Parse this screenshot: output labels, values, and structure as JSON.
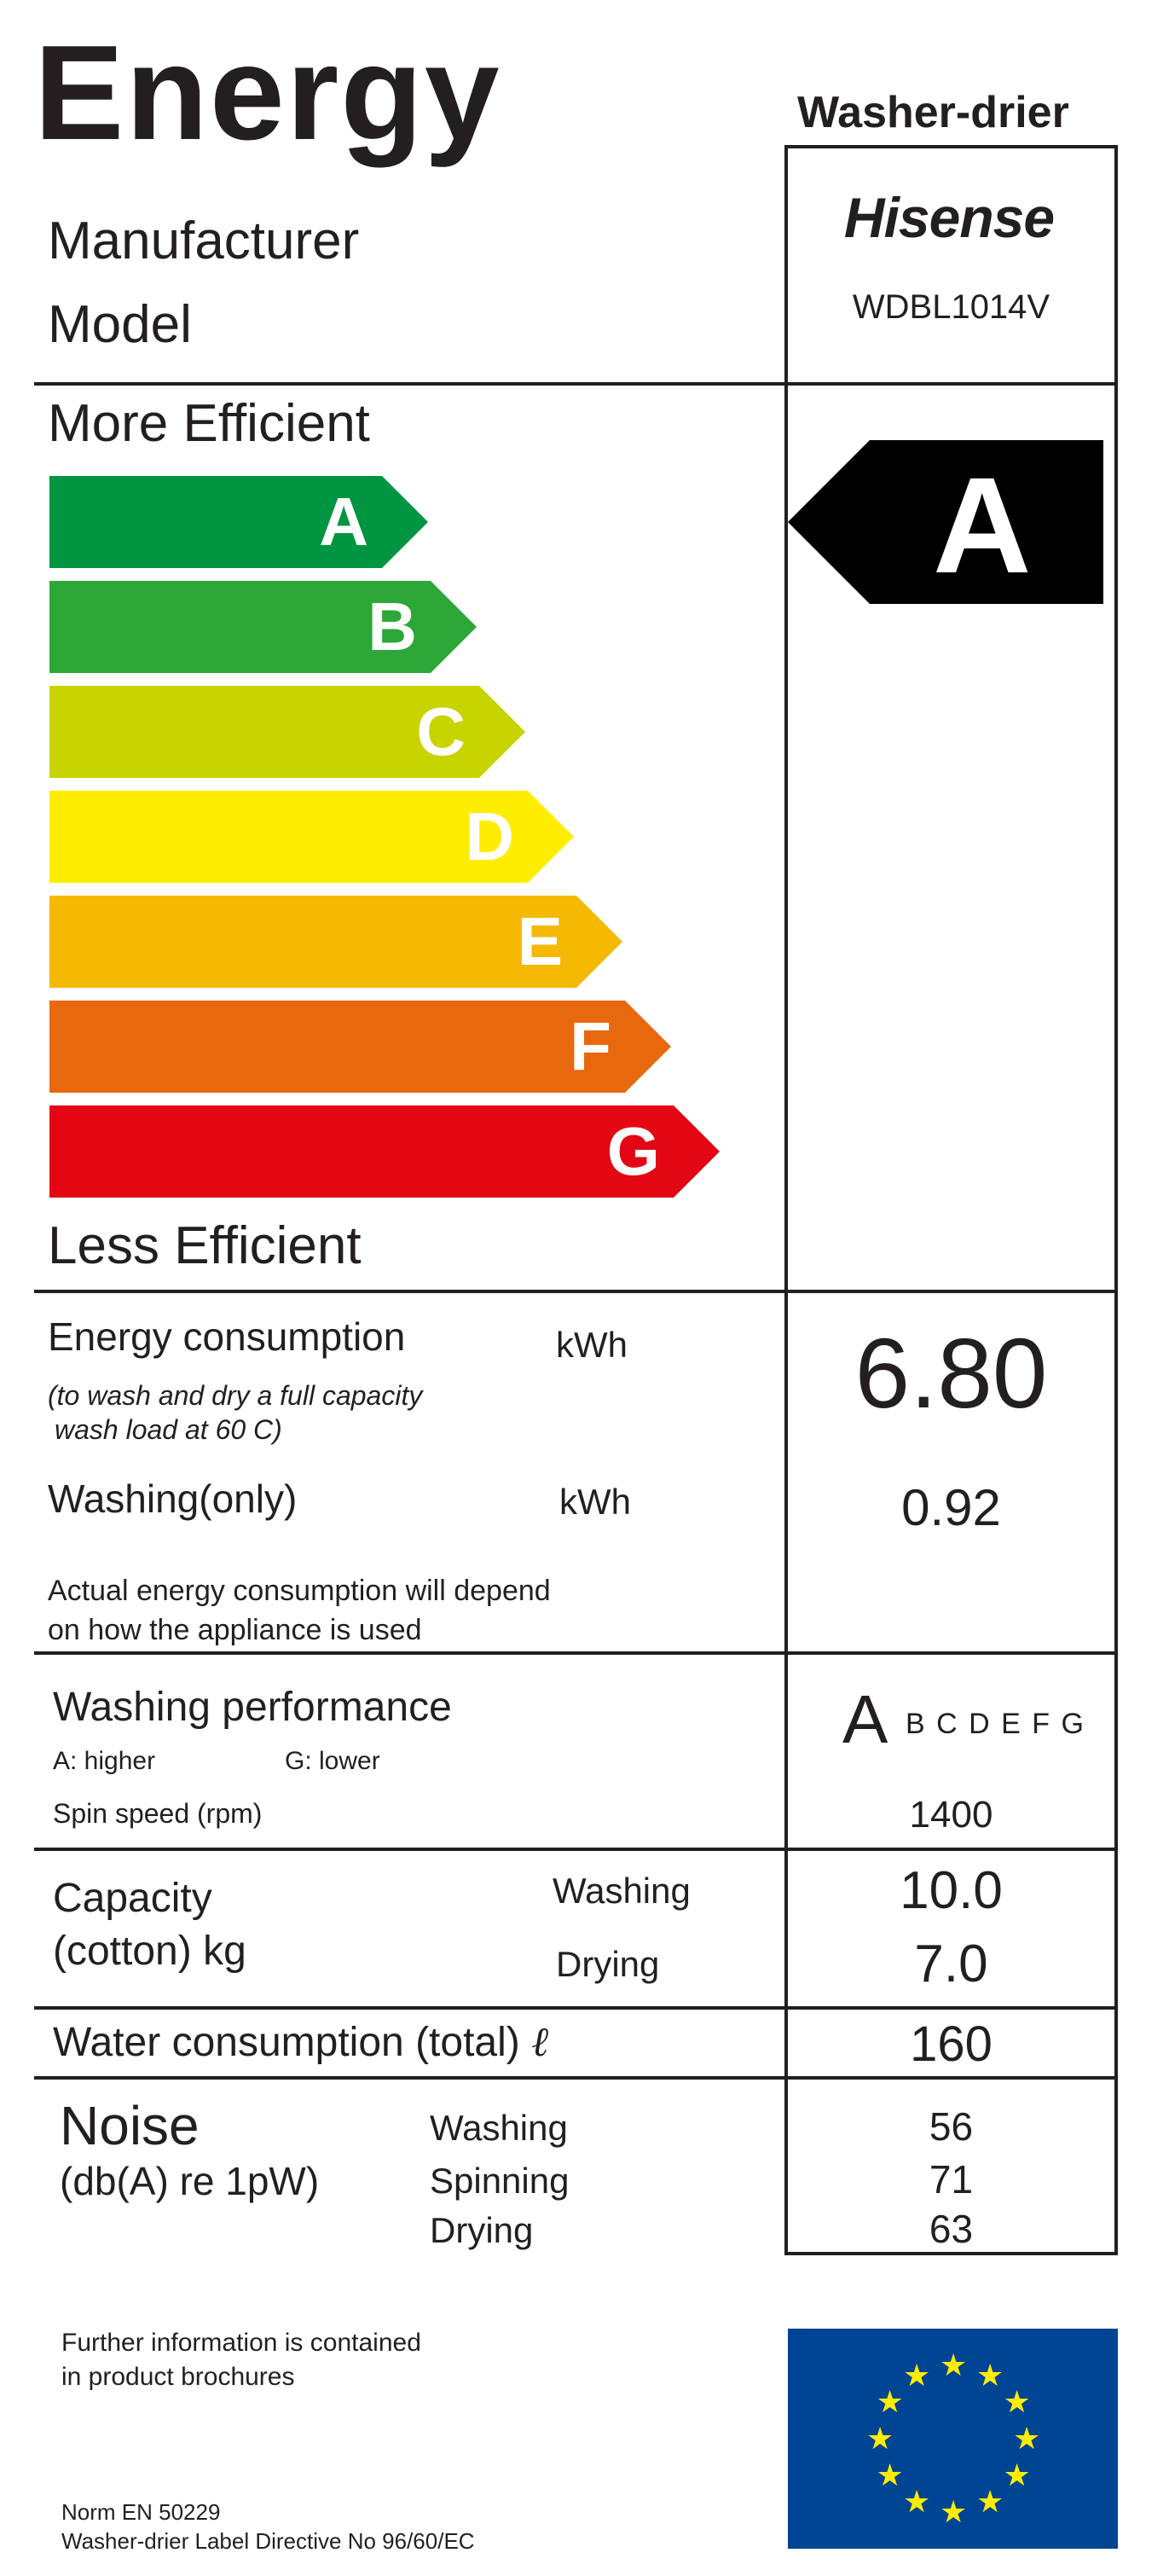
{
  "header": {
    "title": "Energy",
    "appliance_type": "Washer-drier",
    "manufacturer_label": "Manufacturer",
    "model_label": "Model",
    "brand": "Hisense",
    "model": "WDBL1014V"
  },
  "scale": {
    "top_label": "More Efficient",
    "bottom_label": "Less Efficient",
    "classes": [
      {
        "letter": "A",
        "color": "#009540"
      },
      {
        "letter": "B",
        "color": "#2da737"
      },
      {
        "letter": "C",
        "color": "#c8d400"
      },
      {
        "letter": "D",
        "color": "#ffed00"
      },
      {
        "letter": "E",
        "color": "#f5b904"
      },
      {
        "letter": "F",
        "color": "#e8680d"
      },
      {
        "letter": "G",
        "color": "#e30613"
      }
    ],
    "rating": "A",
    "rating_color": "#000000"
  },
  "energy": {
    "label": "Energy consumption",
    "unit": "kWh",
    "note_line1": "(to wash and dry a full capacity",
    "note_line2": "wash load at 60 C)",
    "value": "6.80",
    "washing_label": "Washing(only)",
    "washing_unit": "kWh",
    "washing_value": "0.92",
    "disclaimer_line1": "Actual energy consumption will depend",
    "disclaimer_line2": "on how the appliance is used"
  },
  "performance": {
    "label": "Washing performance",
    "higher": "A: higher",
    "lower": "G: lower",
    "class_big": "A",
    "class_rest": "B C D E F G",
    "spin_label": "Spin speed (rpm)",
    "spin_value": "1400"
  },
  "capacity": {
    "label_line1": "Capacity",
    "label_line2": "(cotton) kg",
    "washing_label": "Washing",
    "washing_value": "10.0",
    "drying_label": "Drying",
    "drying_value": "7.0"
  },
  "water": {
    "label": "Water consumption (total)",
    "unit": "ℓ",
    "value": "160"
  },
  "noise": {
    "label": "Noise",
    "unit": "(db(A) re 1pW)",
    "washing_label": "Washing",
    "washing_value": "56",
    "spinning_label": "Spinning",
    "spinning_value": "71",
    "drying_label": "Drying",
    "drying_value": "63"
  },
  "footer": {
    "info_line1": "Further information is contained",
    "info_line2": "in product brochures",
    "norm": "Norm EN 50229",
    "directive": "Washer-drier Label Directive No 96/60/EC",
    "eu_flag_color": "#004494",
    "eu_star_color": "#ffed00"
  }
}
